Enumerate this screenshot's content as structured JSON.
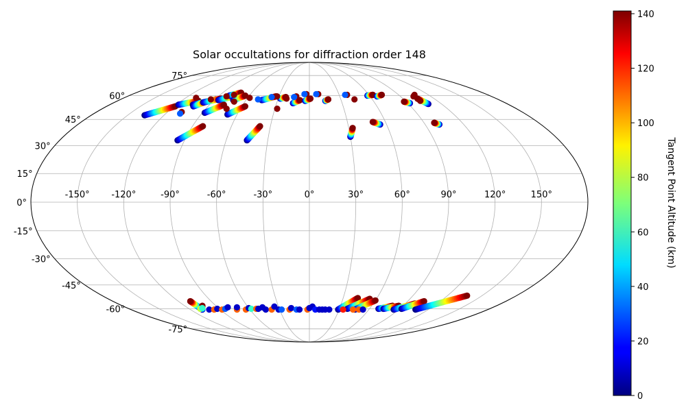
{
  "chart_data": {
    "type": "scatter",
    "projection": "mollweide",
    "title": "Solar occultations for diffraction order 148",
    "x_ticks": [
      -150,
      -120,
      -90,
      -60,
      -30,
      0,
      30,
      60,
      90,
      120,
      150
    ],
    "x_tick_labels": [
      "-150°",
      "-120°",
      "-90°",
      "-60°",
      "-30°",
      "0°",
      "30°",
      "60°",
      "90°",
      "120°",
      "150°"
    ],
    "y_ticks": [
      -75,
      -60,
      -45,
      -30,
      -15,
      0,
      15,
      30,
      45,
      60,
      75
    ],
    "y_tick_labels": [
      "-75°",
      "-60°",
      "-45°",
      "-30°",
      "-15°",
      "0°",
      "15°",
      "30°",
      "45°",
      "60°",
      "75°"
    ],
    "grid": true,
    "colorbar": {
      "label": "Tangent Point Altitude (km)",
      "min": 0,
      "max": 141,
      "ticks": [
        0,
        20,
        40,
        60,
        80,
        100,
        120,
        140
      ],
      "tick_labels": [
        "0",
        "20",
        "40",
        "60",
        "80",
        "100",
        "120",
        "140"
      ],
      "colormap": "jet"
    },
    "tracks": [
      {
        "lon": [
          -136,
          -119
        ],
        "lat": [
          47.5,
          53.0
        ]
      },
      {
        "lon": [
          -118,
          -104
        ],
        "lat": [
          54.0,
          56.5
        ]
      },
      {
        "lon": [
          -105,
          -89
        ],
        "lat": [
          54.0,
          57.5
        ]
      },
      {
        "lon": [
          -103,
          -96
        ],
        "lat": [
          53.0,
          56.0
        ]
      },
      {
        "lon": [
          -98,
          -85
        ],
        "lat": [
          55.5,
          58.0
        ]
      },
      {
        "lon": [
          -86,
          -73
        ],
        "lat": [
          57.0,
          60.0
        ]
      },
      {
        "lon": [
          -80,
          -71
        ],
        "lat": [
          60.0,
          62.0
        ]
      },
      {
        "lon": [
          -72,
          -64
        ],
        "lat": [
          57.0,
          60.0
        ]
      },
      {
        "lon": [
          -95,
          -82
        ],
        "lat": [
          33.0,
          41.0
        ]
      },
      {
        "lon": [
          -88,
          -77
        ],
        "lat": [
          49.0,
          54.0
        ]
      },
      {
        "lon": [
          -68,
          -57
        ],
        "lat": [
          48.0,
          53.0
        ]
      },
      {
        "lon": [
          -45,
          -38
        ],
        "lat": [
          33.0,
          41.0
        ]
      },
      {
        "lon": [
          -45,
          -33
        ],
        "lat": [
          57.0,
          59.5
        ]
      },
      {
        "lon": [
          -28,
          -23
        ],
        "lat": [
          58.0,
          59.0
        ]
      },
      {
        "lon": [
          -15,
          -9
        ],
        "lat": [
          55.0,
          57.0
        ]
      },
      {
        "lon": [
          -4,
          1
        ],
        "lat": [
          56.5,
          58.0
        ]
      },
      {
        "lon": [
          15,
          18
        ],
        "lat": [
          56.5,
          57.5
        ]
      },
      {
        "lon": [
          30,
          33
        ],
        "lat": [
          35.0,
          40.0
        ]
      },
      {
        "lon": [
          55,
          50
        ],
        "lat": [
          42.0,
          43.5
        ]
      },
      {
        "lon": [
          101,
          98
        ],
        "lat": [
          42.0,
          43.0
        ]
      },
      {
        "lon": [
          58,
          64
        ],
        "lat": [
          60.0,
          60.5
        ]
      },
      {
        "lon": [
          67,
          73
        ],
        "lat": [
          59.5,
          60.5
        ]
      },
      {
        "lon": [
          92,
          88
        ],
        "lat": [
          55.0,
          56.0
        ]
      },
      {
        "lon": [
          108,
          104
        ],
        "lat": [
          54.5,
          58.0
        ]
      },
      {
        "lon": [
          -108,
          -109
        ],
        "lat": [
          -59.0,
          -55.0
        ]
      },
      {
        "lon": [
          -108,
          -103
        ],
        "lat": [
          -60.5,
          -58.0
        ]
      },
      {
        "lon": [
          29,
          43
        ],
        "lat": [
          -60.5,
          -53.0
        ]
      },
      {
        "lon": [
          38,
          54
        ],
        "lat": [
          -60.0,
          -53.5
        ]
      },
      {
        "lon": [
          46,
          60
        ],
        "lat": [
          -60.5,
          -54.5
        ]
      },
      {
        "lon": [
          69,
          80
        ],
        "lat": [
          -60.0,
          -58.0
        ]
      },
      {
        "lon": [
          74,
          86
        ],
        "lat": [
          -60.0,
          -58.0
        ]
      },
      {
        "lon": [
          85,
          99
        ],
        "lat": [
          -60.5,
          -56.5
        ]
      },
      {
        "lon": [
          92,
          105
        ],
        "lat": [
          -60.0,
          -55.0
        ]
      },
      {
        "lon": [
          107,
          137
        ],
        "lat": [
          -60.5,
          -51.5
        ]
      }
    ],
    "points": [
      {
        "lon": -110,
        "lat": 58.5,
        "alt": 140
      },
      {
        "lon": -108,
        "lat": 49.5,
        "alt": 140
      },
      {
        "lon": -108,
        "lat": 48.5,
        "alt": 30
      },
      {
        "lon": -94,
        "lat": 57.5,
        "alt": 140
      },
      {
        "lon": -82,
        "lat": 59.5,
        "alt": 140
      },
      {
        "lon": -76,
        "lat": 60.5,
        "alt": 140
      },
      {
        "lon": -70,
        "lat": 56.0,
        "alt": 140
      },
      {
        "lon": -72,
        "lat": 51.5,
        "alt": 140
      },
      {
        "lon": -58,
        "lat": 58.5,
        "alt": 140
      },
      {
        "lon": -49,
        "lat": 57.5,
        "alt": 30
      },
      {
        "lon": -32,
        "lat": 59.5,
        "alt": 140
      },
      {
        "lon": -37,
        "lat": 59.0,
        "alt": 30
      },
      {
        "lon": -22,
        "lat": 58.0,
        "alt": 140
      },
      {
        "lon": -28,
        "lat": 51.5,
        "alt": 140
      },
      {
        "lon": -13,
        "lat": 59.5,
        "alt": 140
      },
      {
        "lon": -15,
        "lat": 59.0,
        "alt": 30
      },
      {
        "lon": -3,
        "lat": 61.0,
        "alt": 140
      },
      {
        "lon": -5,
        "lat": 61.0,
        "alt": 30
      },
      {
        "lon": 9,
        "lat": 61.0,
        "alt": 140
      },
      {
        "lon": 7,
        "lat": 61.0,
        "alt": 30
      },
      {
        "lon": 38,
        "lat": 60.5,
        "alt": 140
      },
      {
        "lon": 36,
        "lat": 60.5,
        "alt": 30
      },
      {
        "lon": 43,
        "lat": 57.5,
        "alt": 140
      },
      {
        "lon": 106,
        "lat": 60.5,
        "alt": 140
      },
      {
        "lon": 103,
        "lat": 59.5,
        "alt": 140
      },
      {
        "lon": 104,
        "lat": 56.5,
        "alt": 140
      },
      {
        "lon": -109,
        "lat": -60.0,
        "alt": 80
      },
      {
        "lon": -106,
        "lat": -59.5,
        "alt": 60
      },
      {
        "lon": -101,
        "lat": -60.5,
        "alt": 10
      },
      {
        "lon": -96,
        "lat": -60.5,
        "alt": 110
      },
      {
        "lon": -92,
        "lat": -60.0,
        "alt": 10
      },
      {
        "lon": -88,
        "lat": -60.5,
        "alt": 110
      },
      {
        "lon": -84,
        "lat": -60.0,
        "alt": 30
      },
      {
        "lon": -80,
        "lat": -59.0,
        "alt": 10
      },
      {
        "lon": -73,
        "lat": -60.5,
        "alt": 110
      },
      {
        "lon": -71,
        "lat": -59.0,
        "alt": 10
      },
      {
        "lon": -64,
        "lat": -60.5,
        "alt": 110
      },
      {
        "lon": -60,
        "lat": -59.5,
        "alt": 10
      },
      {
        "lon": -58,
        "lat": -60.0,
        "alt": 60
      },
      {
        "lon": -53,
        "lat": -60.0,
        "alt": 110
      },
      {
        "lon": -51,
        "lat": -60.0,
        "alt": 10
      },
      {
        "lon": -46,
        "lat": -59.0,
        "alt": 10
      },
      {
        "lon": -44,
        "lat": -60.5,
        "alt": 10
      },
      {
        "lon": -38,
        "lat": -60.5,
        "alt": 110
      },
      {
        "lon": -34,
        "lat": -58.5,
        "alt": 10
      },
      {
        "lon": -31,
        "lat": -60.5,
        "alt": 10
      },
      {
        "lon": -28,
        "lat": -60.5,
        "alt": 30
      },
      {
        "lon": -20,
        "lat": -60.5,
        "alt": 110
      },
      {
        "lon": -18,
        "lat": -59.5,
        "alt": 10
      },
      {
        "lon": -13,
        "lat": -60.5,
        "alt": 30
      },
      {
        "lon": -10,
        "lat": -60.5,
        "alt": 10
      },
      {
        "lon": -2,
        "lat": -60.5,
        "alt": 110
      },
      {
        "lon": 0,
        "lat": -59.5,
        "alt": 10
      },
      {
        "lon": 3,
        "lat": -58.5,
        "alt": 10
      },
      {
        "lon": 6,
        "lat": -60.5,
        "alt": 20
      },
      {
        "lon": 10,
        "lat": -60.5,
        "alt": 10
      },
      {
        "lon": 13,
        "lat": -60.5,
        "alt": 10
      },
      {
        "lon": 16,
        "lat": -60.5,
        "alt": 10
      },
      {
        "lon": 20,
        "lat": -60.5,
        "alt": 10
      },
      {
        "lon": 34,
        "lat": -60.5,
        "alt": 120
      },
      {
        "lon": 44,
        "lat": -60.5,
        "alt": 110
      },
      {
        "lon": 50,
        "lat": -60.5,
        "alt": 110
      },
      {
        "lon": 54,
        "lat": -60.5,
        "alt": 10
      }
    ]
  }
}
